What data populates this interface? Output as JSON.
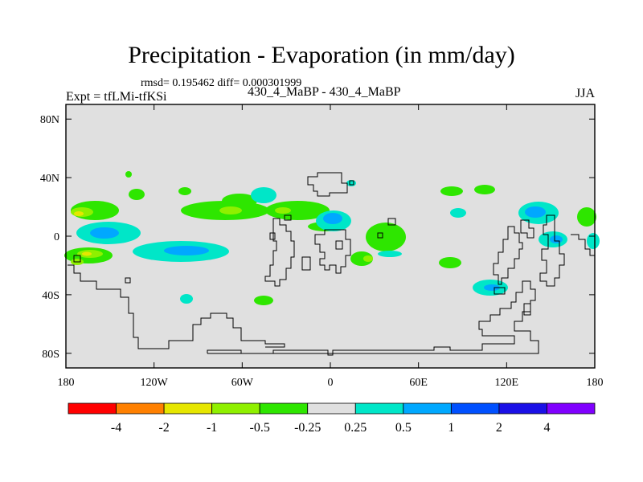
{
  "title": "Precipitation - Evaporation (in mm/day)",
  "stats": "rmsd= 0.195462 diff= 0.000301999",
  "experiment": "Expt = tfLMi-tfKSi",
  "case": "430_4_MaBP - 430_4_MaBP",
  "season": "JJA",
  "lat_ticks": [
    "80N",
    "40N",
    "0",
    "40S",
    "80S"
  ],
  "lat_values": [
    80,
    40,
    0,
    -40,
    -80
  ],
  "lon_ticks": [
    "180",
    "120W",
    "60W",
    "0",
    "60E",
    "120E",
    "180"
  ],
  "lon_values": [
    -180,
    -120,
    -60,
    0,
    60,
    120,
    180
  ],
  "colorbar": {
    "colors": [
      "#ff0000",
      "#ff8000",
      "#e6e600",
      "#8ff000",
      "#2ee600",
      "#e0e0e0",
      "#00e6c8",
      "#00a8ff",
      "#0050ff",
      "#1a10e6",
      "#8000ff"
    ],
    "labels": [
      "-4",
      "-2",
      "-1",
      "-0.5",
      "-0.25",
      "0.25",
      "0.5",
      "1",
      "2",
      "4"
    ]
  },
  "colors": {
    "background_field": "#e0e0e0",
    "coastline": "#000000"
  }
}
